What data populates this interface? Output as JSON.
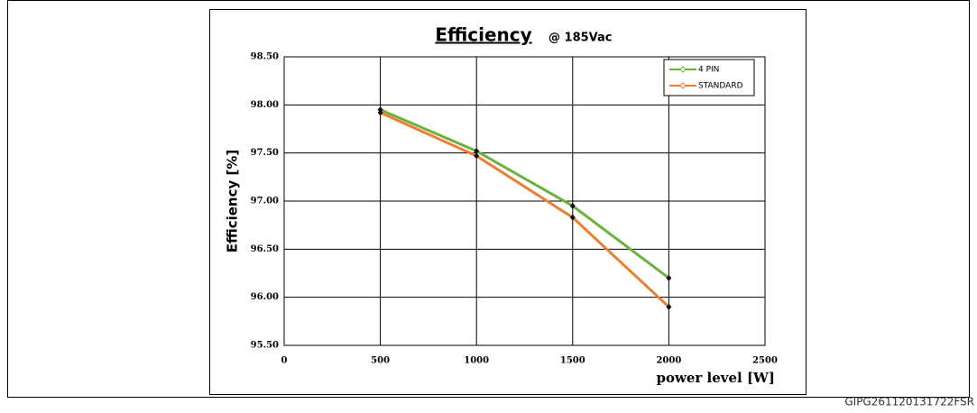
{
  "chart_data": {
    "type": "line",
    "title": "Efficiency",
    "subtitle": "@ 185Vac",
    "x_label": "power level [W]",
    "y_label": "Efficiency [%]",
    "footnote": "GIPG261120131722FSR",
    "x": [
      500,
      1000,
      1500,
      2000
    ],
    "series": [
      {
        "name": "4 PIN",
        "color": "#6ab23c",
        "values": [
          97.95,
          97.52,
          96.95,
          96.2
        ]
      },
      {
        "name": "STANDARD",
        "color": "#ee7d31",
        "values": [
          97.92,
          97.47,
          96.83,
          95.9
        ]
      }
    ],
    "xlim": [
      0,
      2500
    ],
    "xticks": [
      0,
      500,
      1000,
      1500,
      2000,
      2500
    ],
    "ylim": [
      95.5,
      98.5
    ],
    "yticks": [
      {
        "value": 95.5,
        "label": "95.50"
      },
      {
        "value": 96,
        "label": "96.00"
      },
      {
        "value": 96.5,
        "label": "96.50"
      },
      {
        "value": 97,
        "label": "97.00"
      },
      {
        "value": 97.5,
        "label": "97.50"
      },
      {
        "value": 98,
        "label": "98.00"
      },
      {
        "value": 98.5,
        "label": "98.50"
      }
    ],
    "grid": true,
    "legend": "upper right"
  }
}
